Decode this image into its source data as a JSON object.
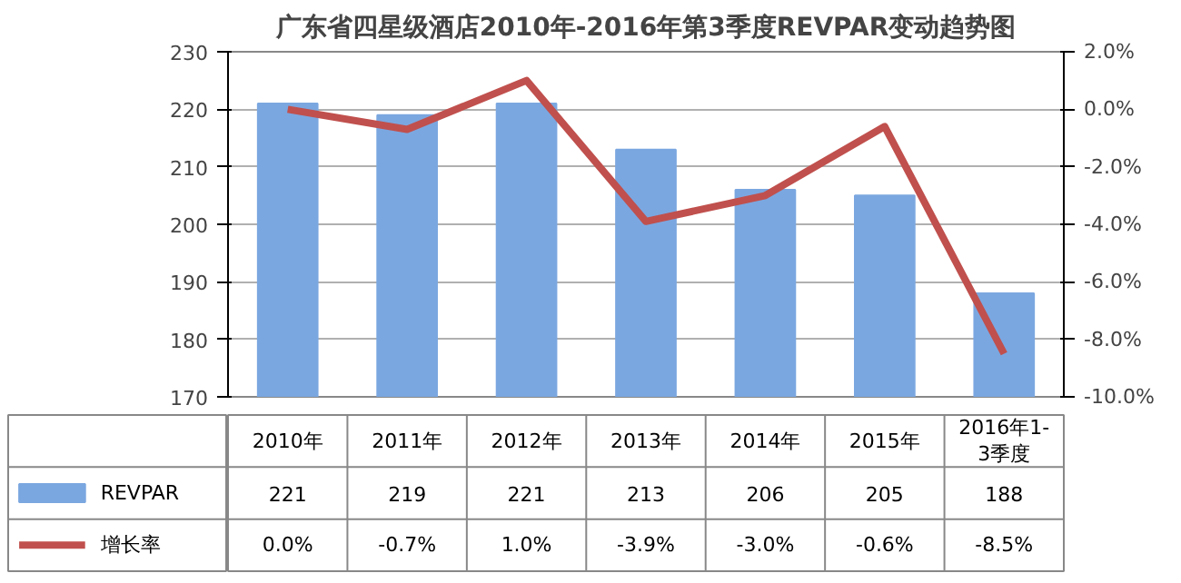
{
  "chart_data": {
    "type": "bar",
    "title": "广东省四星级酒店2010年-2016年第3季度REVPAR变动趋势图",
    "categories": [
      "2010年",
      "2011年",
      "2012年",
      "2013年",
      "2014年",
      "2015年",
      "2016年1-3季度"
    ],
    "series": [
      {
        "name": "REVPAR",
        "color": "#7ba7e0",
        "values": [
          221,
          219,
          221,
          213,
          206,
          205,
          188
        ]
      },
      {
        "name": "增长率",
        "type": "line",
        "axis": "y2",
        "color": "#c0504d",
        "values": [
          0.0,
          -0.7,
          1.0,
          -3.9,
          -3.0,
          -0.6,
          -8.5
        ],
        "value_labels": [
          "0.0%",
          "-0.7%",
          "1.0%",
          "-3.9%",
          "-3.0%",
          "-0.6%",
          "-8.5%"
        ]
      }
    ],
    "ylim": [
      170,
      230
    ],
    "yticks": [
      170,
      180,
      190,
      200,
      210,
      220,
      230
    ],
    "y2lim": [
      -10,
      2
    ],
    "y2ticks": [
      {
        "value": -10,
        "label": "-10.0%"
      },
      {
        "value": -8,
        "label": "-8.0%"
      },
      {
        "value": -6,
        "label": "-6.0%"
      },
      {
        "value": -4,
        "label": "-4.0%"
      },
      {
        "value": -2,
        "label": "-2.0%"
      },
      {
        "value": 0,
        "label": "0.0%"
      },
      {
        "value": 2,
        "label": "2.0%"
      }
    ],
    "grid": "y",
    "legend": "bottom",
    "data_labels": true
  }
}
